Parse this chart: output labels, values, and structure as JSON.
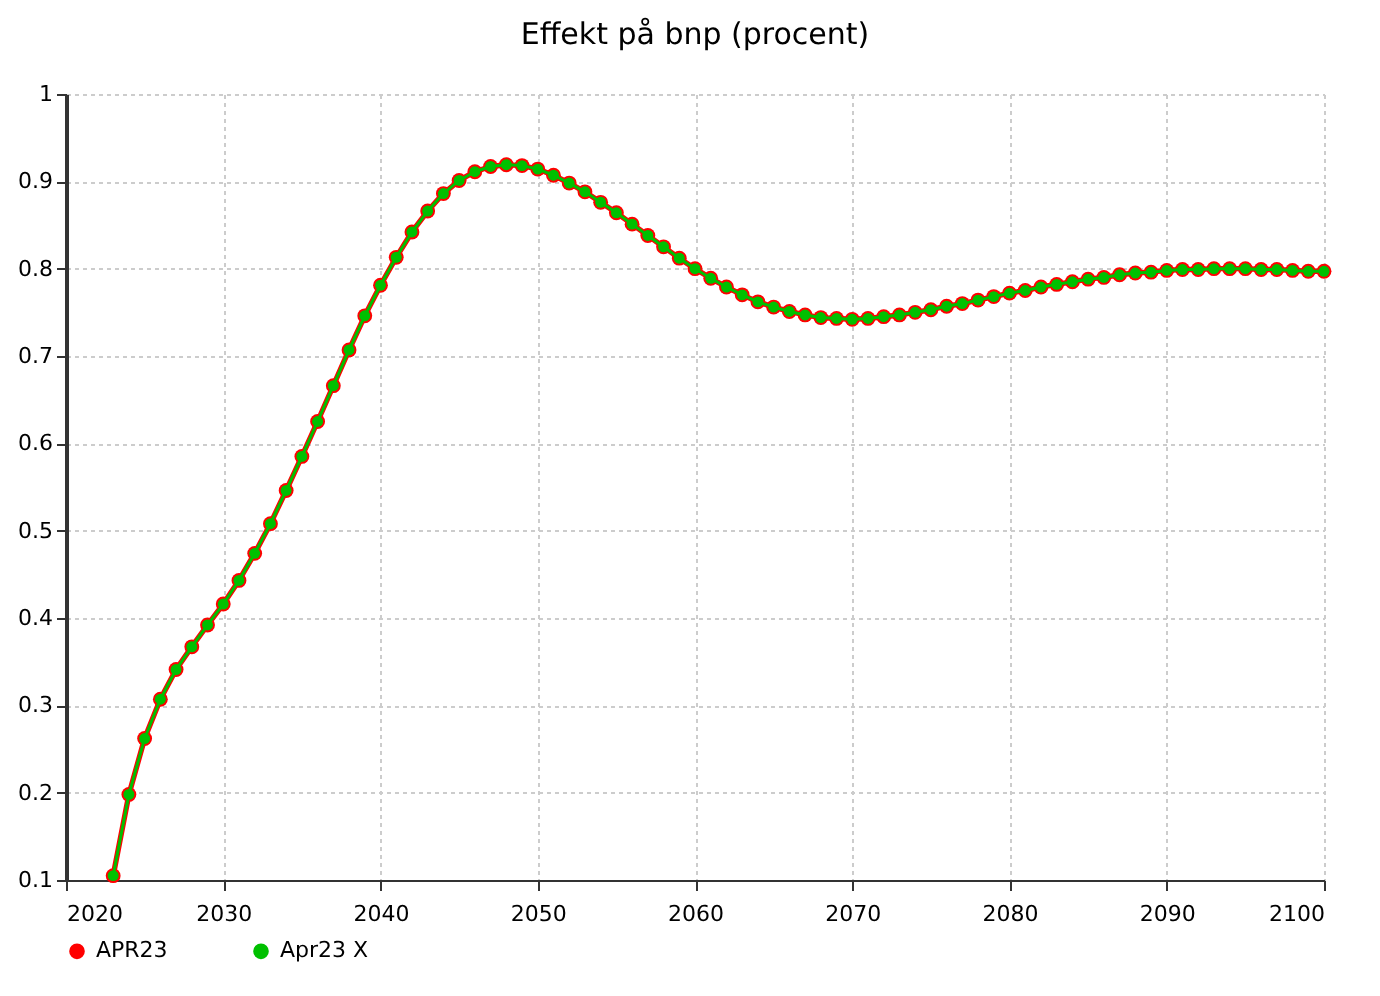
{
  "chart_data": {
    "type": "line",
    "title": "Effekt på bnp (procent)",
    "x": [
      2023,
      2024,
      2025,
      2026,
      2027,
      2028,
      2029,
      2030,
      2031,
      2032,
      2033,
      2034,
      2035,
      2036,
      2037,
      2038,
      2039,
      2040,
      2041,
      2042,
      2043,
      2044,
      2045,
      2046,
      2047,
      2048,
      2049,
      2050,
      2051,
      2052,
      2053,
      2054,
      2055,
      2056,
      2057,
      2058,
      2059,
      2060,
      2061,
      2062,
      2063,
      2064,
      2065,
      2066,
      2067,
      2068,
      2069,
      2070,
      2071,
      2072,
      2073,
      2074,
      2075,
      2076,
      2077,
      2078,
      2079,
      2080,
      2081,
      2082,
      2083,
      2084,
      2085,
      2086,
      2087,
      2088,
      2089,
      2090,
      2091,
      2092,
      2093,
      2094,
      2095,
      2096,
      2097,
      2098,
      2099,
      2100
    ],
    "series": [
      {
        "name": "APR23",
        "color": "#ff0000",
        "values": [
          0.105,
          0.198,
          0.262,
          0.307,
          0.341,
          0.367,
          0.392,
          0.416,
          0.443,
          0.474,
          0.508,
          0.546,
          0.585,
          0.625,
          0.666,
          0.707,
          0.746,
          0.781,
          0.813,
          0.842,
          0.866,
          0.886,
          0.901,
          0.911,
          0.917,
          0.919,
          0.918,
          0.914,
          0.907,
          0.898,
          0.888,
          0.876,
          0.864,
          0.851,
          0.838,
          0.825,
          0.812,
          0.8,
          0.789,
          0.779,
          0.77,
          0.762,
          0.756,
          0.751,
          0.747,
          0.744,
          0.743,
          0.742,
          0.743,
          0.745,
          0.747,
          0.75,
          0.753,
          0.757,
          0.76,
          0.764,
          0.768,
          0.772,
          0.775,
          0.779,
          0.782,
          0.785,
          0.788,
          0.79,
          0.793,
          0.795,
          0.796,
          0.798,
          0.799,
          0.799,
          0.8,
          0.8,
          0.8,
          0.799,
          0.799,
          0.798,
          0.797,
          0.797
        ]
      },
      {
        "name": "Apr23 X",
        "color": "#00c000",
        "values": [
          0.105,
          0.198,
          0.262,
          0.307,
          0.341,
          0.367,
          0.392,
          0.416,
          0.443,
          0.474,
          0.508,
          0.546,
          0.585,
          0.625,
          0.666,
          0.707,
          0.746,
          0.781,
          0.813,
          0.842,
          0.866,
          0.886,
          0.901,
          0.911,
          0.917,
          0.919,
          0.918,
          0.914,
          0.907,
          0.898,
          0.888,
          0.876,
          0.864,
          0.851,
          0.838,
          0.825,
          0.812,
          0.8,
          0.789,
          0.779,
          0.77,
          0.762,
          0.756,
          0.751,
          0.747,
          0.744,
          0.743,
          0.742,
          0.743,
          0.745,
          0.747,
          0.75,
          0.753,
          0.757,
          0.76,
          0.764,
          0.768,
          0.772,
          0.775,
          0.779,
          0.782,
          0.785,
          0.788,
          0.79,
          0.793,
          0.795,
          0.796,
          0.798,
          0.799,
          0.799,
          0.8,
          0.8,
          0.8,
          0.799,
          0.799,
          0.798,
          0.797,
          0.797
        ]
      }
    ],
    "xlim": [
      2020,
      2100
    ],
    "xticks": [
      2020,
      2030,
      2040,
      2050,
      2060,
      2070,
      2080,
      2090,
      2100
    ],
    "ylim": [
      0.1,
      1
    ],
    "yticks": [
      0.1,
      0.2,
      0.3,
      0.4,
      0.5,
      0.6,
      0.7,
      0.8,
      0.9,
      {
        "value": 1,
        "label": "1"
      }
    ],
    "grid": true,
    "legend": "bottom",
    "marker": "circle",
    "line_style": "solid"
  }
}
